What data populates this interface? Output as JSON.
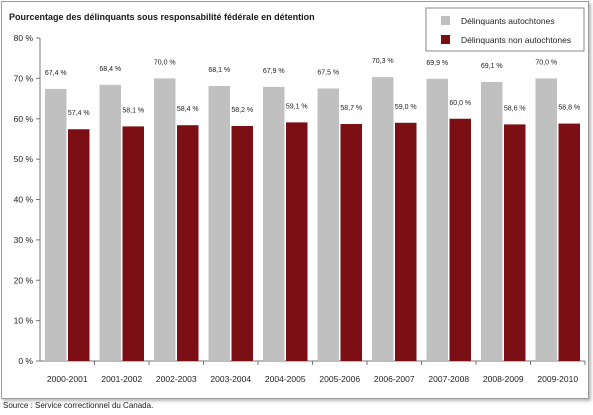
{
  "chart_data": {
    "type": "bar",
    "title": "Pourcentage des délinquants sous responsabilité fédérale en détention",
    "categories": [
      "2000-2001",
      "2001-2002",
      "2002-2003",
      "2003-2004",
      "2004-2005",
      "2005-2006",
      "2006-2007",
      "2007-2008",
      "2008-2009",
      "2009-2010"
    ],
    "series": [
      {
        "name": "Délinquants autochtones",
        "color": "#c0c0c0",
        "values": [
          67.4,
          68.4,
          70.0,
          68.1,
          67.9,
          67.5,
          70.3,
          69.9,
          69.1,
          70.0
        ],
        "labels": [
          "67,4 %",
          "68,4 %",
          "70,0 %",
          "68,1 %",
          "67,9 %",
          "67,5 %",
          "70,3 %",
          "69,9 %",
          "69,1 %",
          "70,0 %"
        ]
      },
      {
        "name": "Délinquants non autochtones",
        "color": "#7b0f14",
        "values": [
          57.4,
          58.1,
          58.4,
          58.2,
          59.1,
          58.7,
          59.0,
          60.0,
          58.6,
          58.8
        ],
        "labels": [
          "57,4 %",
          "58,1 %",
          "58,4 %",
          "58,2 %",
          "59,1 %",
          "58,7 %",
          "59,0 %",
          "60,0 %",
          "58,6 %",
          "58,8 %"
        ]
      }
    ],
    "ylim": [
      0,
      80
    ],
    "yticks": [
      0,
      10,
      20,
      30,
      40,
      50,
      60,
      70,
      80
    ],
    "ytick_labels": [
      "0 %",
      "10 %",
      "20 %",
      "30 %",
      "40 %",
      "50 %",
      "60 %",
      "70 %",
      "80 %"
    ],
    "grid": false,
    "legend_position": "top-right"
  },
  "source_note": "Source : Service correctionnel du Canada."
}
